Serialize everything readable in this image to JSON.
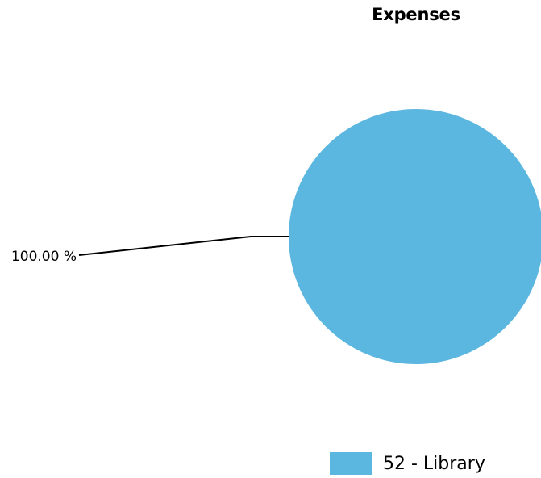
{
  "chart_data": {
    "type": "pie",
    "title": "Expenses",
    "slices": [
      {
        "label": "52 - Library",
        "value": 100.0,
        "percent_label": "100.00 %",
        "color": "#5BB6E0"
      }
    ],
    "legend_position": "bottom-right"
  }
}
